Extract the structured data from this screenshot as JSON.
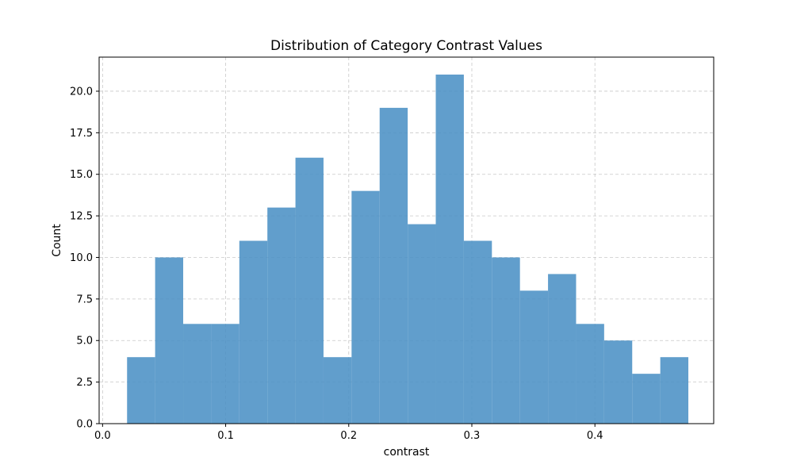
{
  "chart_data": {
    "type": "bar",
    "subtype": "histogram",
    "title": "Distribution of Category Contrast Values",
    "xlabel": "contrast",
    "ylabel": "Count",
    "xlim": [
      -0.0028,
      0.4965
    ],
    "ylim": [
      0,
      22.05
    ],
    "x_ticks": [
      0.0,
      0.1,
      0.2,
      0.3,
      0.4
    ],
    "x_tick_labels": [
      "0.0",
      "0.1",
      "0.2",
      "0.3",
      "0.4"
    ],
    "y_ticks": [
      0,
      2.5,
      5,
      7.5,
      10,
      12.5,
      15,
      17.5,
      20
    ],
    "y_tick_labels": [
      "0.0",
      "2.5",
      "5.0",
      "7.5",
      "10.0",
      "12.5",
      "15.0",
      "17.5",
      "20.0"
    ],
    "grid": true,
    "bar_color": "#4a90c4",
    "bin_edges": [
      0.0199,
      0.0427,
      0.0655,
      0.0883,
      0.1111,
      0.1339,
      0.1567,
      0.1795,
      0.2023,
      0.2251,
      0.2479,
      0.2707,
      0.2935,
      0.3163,
      0.3391,
      0.3619,
      0.3847,
      0.4075,
      0.4303,
      0.4531,
      0.4759
    ],
    "values": [
      4,
      10,
      6,
      6,
      11,
      13,
      16,
      4,
      14,
      19,
      12,
      21,
      11,
      10,
      8,
      9,
      6,
      5,
      3,
      4
    ]
  }
}
